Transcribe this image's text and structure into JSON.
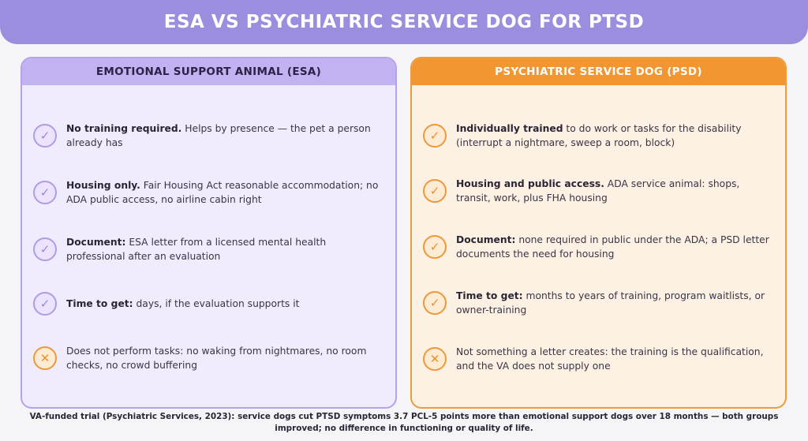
{
  "title": "ESA VS PSYCHIATRIC SERVICE DOG FOR PTSD",
  "left_panel": {
    "heading": "EMOTIONAL SUPPORT ANIMAL (ESA)",
    "items": [
      {
        "icon": "check-icon",
        "bold": "No training required.",
        "text": " Helps by presence — the pet a person already has"
      },
      {
        "icon": "check-icon",
        "bold": "Housing only.",
        "text": " Fair Housing Act reasonable accommodation; no ADA public access, no airline cabin right"
      },
      {
        "icon": "check-icon",
        "bold": "Document:",
        "text": " ESA letter from a licensed mental health professional after an evaluation"
      },
      {
        "icon": "check-icon",
        "bold": "Time to get:",
        "text": " days, if the evaluation supports it"
      },
      {
        "icon": "cross-icon",
        "bold": "",
        "text": "Does not perform tasks: no waking from nightmares, no room checks, no crowd buffering"
      }
    ]
  },
  "right_panel": {
    "heading": "PSYCHIATRIC SERVICE DOG (PSD)",
    "items": [
      {
        "icon": "check-icon",
        "bold": "Individually trained",
        "text": " to do work or tasks for the disability (interrupt a nightmare, sweep a room, block)"
      },
      {
        "icon": "check-icon",
        "bold": "Housing and public access.",
        "text": " ADA service animal: shops, transit, work, plus FHA housing"
      },
      {
        "icon": "check-icon",
        "bold": "Document:",
        "text": " none required in public under the ADA; a PSD letter documents the need for housing"
      },
      {
        "icon": "check-icon",
        "bold": "Time to get:",
        "text": " months to years of training, program waitlists, or owner-training"
      },
      {
        "icon": "cross-icon",
        "bold": "",
        "text": "Not something a letter creates: the training is the qualification, and the VA does not supply one"
      }
    ]
  },
  "footnote": "VA-funded trial (Psychiatric Services, 2023): service dogs cut PTSD symptoms 3.7 PCL-5 points more than emotional support dogs over 18 months — both groups improved; no difference in functioning or quality of life.",
  "colors": {
    "header": "#9b8ede",
    "esa_accent": "#c2b2f1",
    "psd_accent": "#f29632"
  }
}
